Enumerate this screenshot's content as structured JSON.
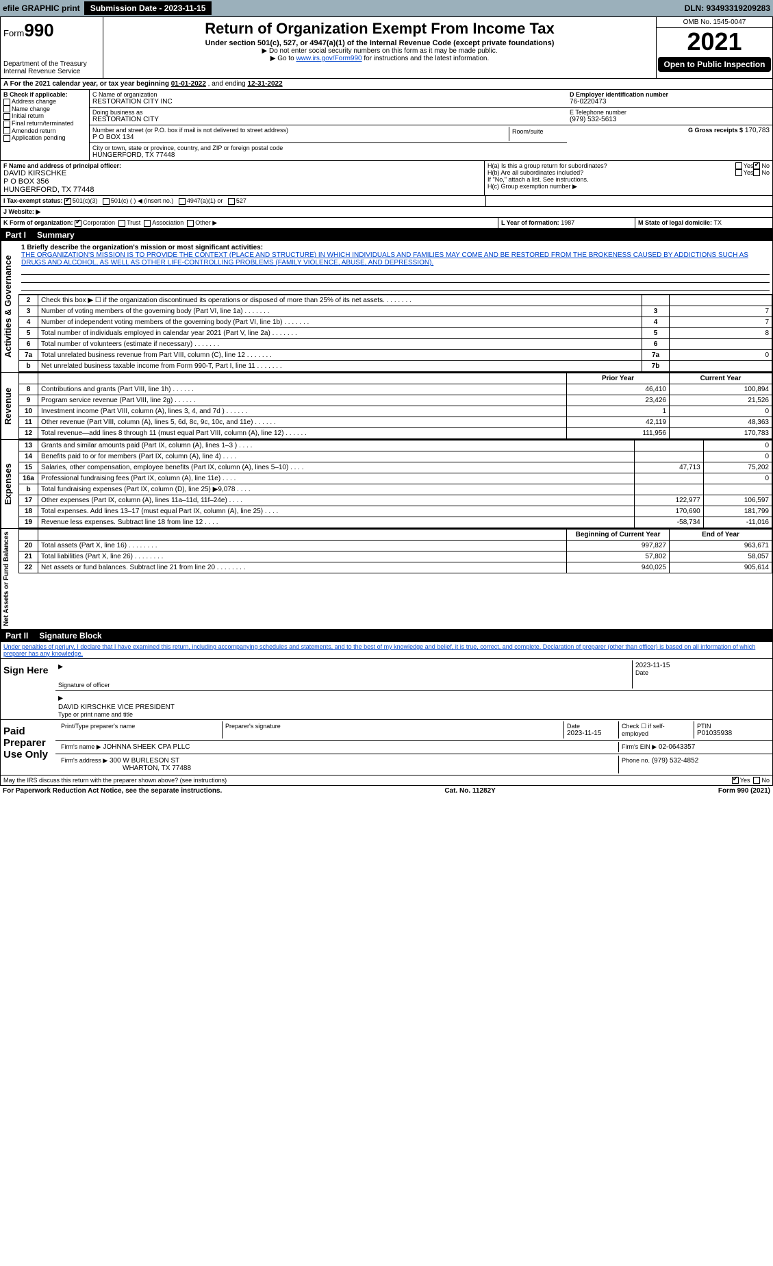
{
  "topbar": {
    "efile_label": "efile GRAPHIC print",
    "submission_label": "Submission Date - 2023-11-15",
    "dln_label": "DLN: 93493319209283"
  },
  "header": {
    "form_prefix": "Form",
    "form_number": "990",
    "dept": "Department of the Treasury",
    "irs": "Internal Revenue Service",
    "title": "Return of Organization Exempt From Income Tax",
    "subtitle": "Under section 501(c), 527, or 4947(a)(1) of the Internal Revenue Code (except private foundations)",
    "warn": "▶ Do not enter social security numbers on this form as it may be made public.",
    "goto_pre": "▶ Go to ",
    "goto_link": "www.irs.gov/Form990",
    "goto_post": " for instructions and the latest information.",
    "omb": "OMB No. 1545-0047",
    "year": "2021",
    "otp": "Open to Public Inspection"
  },
  "period": {
    "label_a": "A For the 2021 calendar year, or tax year beginning ",
    "begin": "01-01-2022",
    "mid": " , and ending ",
    "end": "12-31-2022"
  },
  "boxB": {
    "header": "B Check if applicable:",
    "items": [
      "Address change",
      "Name change",
      "Initial return",
      "Final return/terminated",
      "Amended return",
      "Application pending"
    ]
  },
  "boxC": {
    "name_label": "C Name of organization",
    "name": "RESTORATION CITY INC",
    "dba_label": "Doing business as",
    "dba": "RESTORATION CITY",
    "addr_label": "Number and street (or P.O. box if mail is not delivered to street address)",
    "room_label": "Room/suite",
    "addr": "P O BOX 134",
    "city_label": "City or town, state or province, country, and ZIP or foreign postal code",
    "city": "HUNGERFORD, TX  77448"
  },
  "boxD": {
    "label": "D Employer identification number",
    "value": "76-0220473"
  },
  "boxE": {
    "label": "E Telephone number",
    "value": "(979) 532-5613"
  },
  "boxG": {
    "label": "G Gross receipts $",
    "value": "170,783"
  },
  "boxF": {
    "label": "F Name and address of principal officer:",
    "name": "DAVID KIRSCHKE",
    "addr1": "P O BOX 356",
    "addr2": "HUNGERFORD, TX  77448"
  },
  "boxH": {
    "a": "H(a) Is this a group return for subordinates?",
    "b": "H(b) Are all subordinates included?",
    "note": "If \"No,\" attach a list. See instructions.",
    "c": "H(c) Group exemption number ▶",
    "yes": "Yes",
    "no": "No"
  },
  "boxI": {
    "label": "I Tax-exempt status:",
    "opts": [
      "501(c)(3)",
      "501(c) (   ) ◀ (insert no.)",
      "4947(a)(1) or",
      "527"
    ]
  },
  "boxJ": {
    "label": "J Website: ▶"
  },
  "boxK": {
    "label": "K Form of organization:",
    "opts": [
      "Corporation",
      "Trust",
      "Association",
      "Other ▶"
    ]
  },
  "boxL": {
    "label": "L Year of formation: ",
    "value": "1987"
  },
  "boxM": {
    "label": "M State of legal domicile: ",
    "value": "TX"
  },
  "part1": {
    "num": "Part I",
    "title": "Summary"
  },
  "mission": {
    "line1_label": "1 Briefly describe the organization's mission or most significant activities:",
    "text": "THE ORGANIZATION'S MISSION IS TO PROVIDE THE CONTEXT (PLACE AND STRUCTURE) IN WHICH INDIVIDUALS AND FAMILIES MAY COME AND BE RESTORED FROM THE BROKENESS CAUSED BY ADDICTIONS SUCH AS DRUGS AND ALCOHOL, AS WELL AS OTHER LIFE-CONTROLLING PROBLEMS (FAMILY VIOLENCE, ABUSE, AND DEPRESSION)."
  },
  "gov_rows": [
    {
      "n": "2",
      "d": "Check this box ▶ ☐ if the organization discontinued its operations or disposed of more than 25% of its net assets.",
      "box": "",
      "v": ""
    },
    {
      "n": "3",
      "d": "Number of voting members of the governing body (Part VI, line 1a)",
      "box": "3",
      "v": "7"
    },
    {
      "n": "4",
      "d": "Number of independent voting members of the governing body (Part VI, line 1b)",
      "box": "4",
      "v": "7"
    },
    {
      "n": "5",
      "d": "Total number of individuals employed in calendar year 2021 (Part V, line 2a)",
      "box": "5",
      "v": "8"
    },
    {
      "n": "6",
      "d": "Total number of volunteers (estimate if necessary)",
      "box": "6",
      "v": ""
    },
    {
      "n": "7a",
      "d": "Total unrelated business revenue from Part VIII, column (C), line 12",
      "box": "7a",
      "v": "0"
    },
    {
      "n": "b",
      "d": "Net unrelated business taxable income from Form 990-T, Part I, line 11",
      "box": "7b",
      "v": ""
    }
  ],
  "col_headers": {
    "prior": "Prior Year",
    "current": "Current Year"
  },
  "revenue_rows": [
    {
      "n": "8",
      "d": "Contributions and grants (Part VIII, line 1h)",
      "p": "46,410",
      "c": "100,894"
    },
    {
      "n": "9",
      "d": "Program service revenue (Part VIII, line 2g)",
      "p": "23,426",
      "c": "21,526"
    },
    {
      "n": "10",
      "d": "Investment income (Part VIII, column (A), lines 3, 4, and 7d )",
      "p": "1",
      "c": "0"
    },
    {
      "n": "11",
      "d": "Other revenue (Part VIII, column (A), lines 5, 6d, 8c, 9c, 10c, and 11e)",
      "p": "42,119",
      "c": "48,363"
    },
    {
      "n": "12",
      "d": "Total revenue—add lines 8 through 11 (must equal Part VIII, column (A), line 12)",
      "p": "111,956",
      "c": "170,783"
    }
  ],
  "expense_rows": [
    {
      "n": "13",
      "d": "Grants and similar amounts paid (Part IX, column (A), lines 1–3 )",
      "p": "",
      "c": "0"
    },
    {
      "n": "14",
      "d": "Benefits paid to or for members (Part IX, column (A), line 4)",
      "p": "",
      "c": "0"
    },
    {
      "n": "15",
      "d": "Salaries, other compensation, employee benefits (Part IX, column (A), lines 5–10)",
      "p": "47,713",
      "c": "75,202"
    },
    {
      "n": "16a",
      "d": "Professional fundraising fees (Part IX, column (A), line 11e)",
      "p": "",
      "c": "0"
    },
    {
      "n": "b",
      "d": "Total fundraising expenses (Part IX, column (D), line 25) ▶9,078",
      "p": "",
      "c": ""
    },
    {
      "n": "17",
      "d": "Other expenses (Part IX, column (A), lines 11a–11d, 11f–24e)",
      "p": "122,977",
      "c": "106,597"
    },
    {
      "n": "18",
      "d": "Total expenses. Add lines 13–17 (must equal Part IX, column (A), line 25)",
      "p": "170,690",
      "c": "181,799"
    },
    {
      "n": "19",
      "d": "Revenue less expenses. Subtract line 18 from line 12",
      "p": "-58,734",
      "c": "-11,016"
    }
  ],
  "na_headers": {
    "begin": "Beginning of Current Year",
    "end": "End of Year"
  },
  "na_rows": [
    {
      "n": "20",
      "d": "Total assets (Part X, line 16)",
      "p": "997,827",
      "c": "963,671"
    },
    {
      "n": "21",
      "d": "Total liabilities (Part X, line 26)",
      "p": "57,802",
      "c": "58,057"
    },
    {
      "n": "22",
      "d": "Net assets or fund balances. Subtract line 21 from line 20",
      "p": "940,025",
      "c": "905,614"
    }
  ],
  "side_labels": {
    "gov": "Activities & Governance",
    "rev": "Revenue",
    "exp": "Expenses",
    "na": "Net Assets or Fund Balances"
  },
  "part2": {
    "num": "Part II",
    "title": "Signature Block"
  },
  "perjury": "Under penalties of perjury, I declare that I have examined this return, including accompanying schedules and statements, and to the best of my knowledge and belief, it is true, correct, and complete. Declaration of preparer (other than officer) is based on all information of which preparer has any knowledge.",
  "sign": {
    "here": "Sign Here",
    "sig_officer": "Signature of officer",
    "date": "Date",
    "date_val": "2023-11-15",
    "name": "DAVID KIRSCHKE  VICE PRESIDENT",
    "name_lbl": "Type or print name and title"
  },
  "paid": {
    "label": "Paid Preparer Use Only",
    "h1": "Print/Type preparer's name",
    "h2": "Preparer's signature",
    "h3": "Date",
    "date": "2023-11-15",
    "h4": "Check ☐ if self-employed",
    "h5": "PTIN",
    "ptin": "P01035938",
    "firm_name_lbl": "Firm's name    ▶",
    "firm_name": "JOHNNA SHEEK CPA PLLC",
    "firm_ein_lbl": "Firm's EIN ▶",
    "firm_ein": "02-0643357",
    "firm_addr_lbl": "Firm's address ▶",
    "firm_addr1": "300 W BURLESON ST",
    "firm_addr2": "WHARTON, TX  77488",
    "phone_lbl": "Phone no.",
    "phone": "(979) 532-4852"
  },
  "discuss": {
    "q": "May the IRS discuss this return with the preparer shown above? (see instructions)",
    "yes": "Yes",
    "no": "No"
  },
  "footer": {
    "left": "For Paperwork Reduction Act Notice, see the separate instructions.",
    "mid": "Cat. No. 11282Y",
    "right": "Form 990 (2021)"
  }
}
